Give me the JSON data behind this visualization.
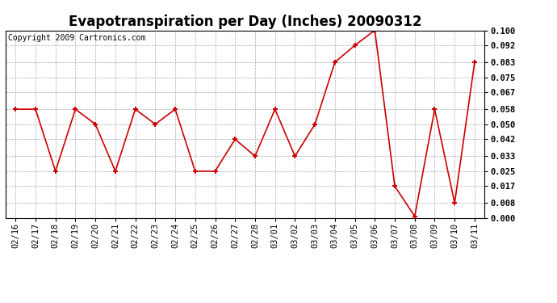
{
  "title": "Evapotranspiration per Day (Inches) 20090312",
  "copyright": "Copyright 2009 Cartronics.com",
  "dates": [
    "02/16",
    "02/17",
    "02/18",
    "02/19",
    "02/20",
    "02/21",
    "02/22",
    "02/23",
    "02/24",
    "02/25",
    "02/26",
    "02/27",
    "02/28",
    "03/01",
    "03/02",
    "03/03",
    "03/04",
    "03/05",
    "03/06",
    "03/07",
    "03/08",
    "03/09",
    "03/10",
    "03/11"
  ],
  "values": [
    0.058,
    0.058,
    0.025,
    0.058,
    0.05,
    0.025,
    0.058,
    0.05,
    0.058,
    0.025,
    0.025,
    0.042,
    0.033,
    0.058,
    0.033,
    0.05,
    0.083,
    0.092,
    0.1,
    0.017,
    0.001,
    0.058,
    0.008,
    0.083
  ],
  "line_color": "#cc0000",
  "marker": "+",
  "marker_size": 5,
  "marker_linewidth": 1.5,
  "line_width": 1.2,
  "ylim": [
    0.0,
    0.1
  ],
  "yticks": [
    0.0,
    0.008,
    0.017,
    0.025,
    0.033,
    0.042,
    0.05,
    0.058,
    0.067,
    0.075,
    0.083,
    0.092,
    0.1
  ],
  "background_color": "#ffffff",
  "grid_color": "#aaaaaa",
  "title_fontsize": 12,
  "copyright_fontsize": 7,
  "tick_fontsize": 7.5,
  "ylabel_right_pad": 5
}
